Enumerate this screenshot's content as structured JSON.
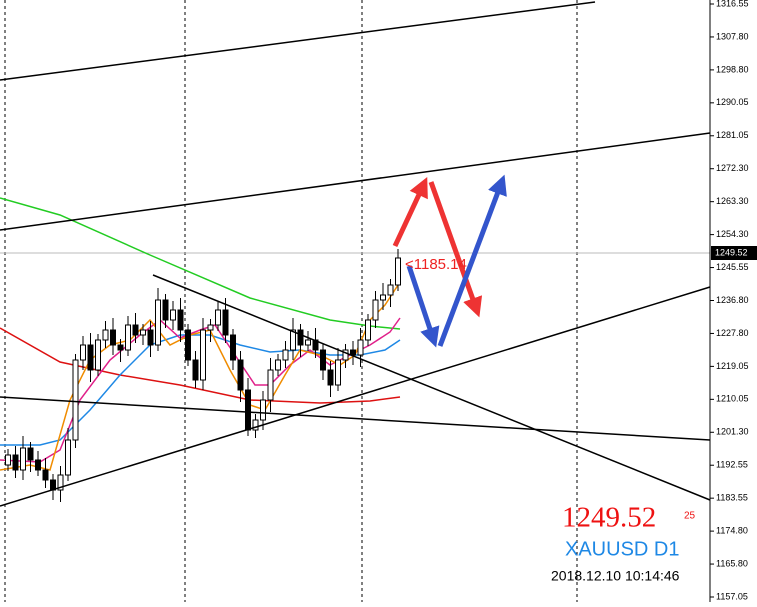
{
  "axis": {
    "labels": [
      "1316.55",
      "1307.80",
      "1298.80",
      "1290.05",
      "1281.05",
      "1272.30",
      "1263.30",
      "1254.30",
      "1245.55",
      "1236.80",
      "1227.80",
      "1219.05",
      "1210.05",
      "1201.30",
      "1192.55",
      "1183.55",
      "1174.80",
      "1165.80",
      "1157.05"
    ],
    "current_price": "1249.52"
  },
  "overlay": {
    "arrow_label": "<1185.14",
    "price": "1249.52",
    "price_fraction": "25",
    "symbol": "XAUUSD D1",
    "timestamp": "2018.12.10 10:14:46"
  }
}
